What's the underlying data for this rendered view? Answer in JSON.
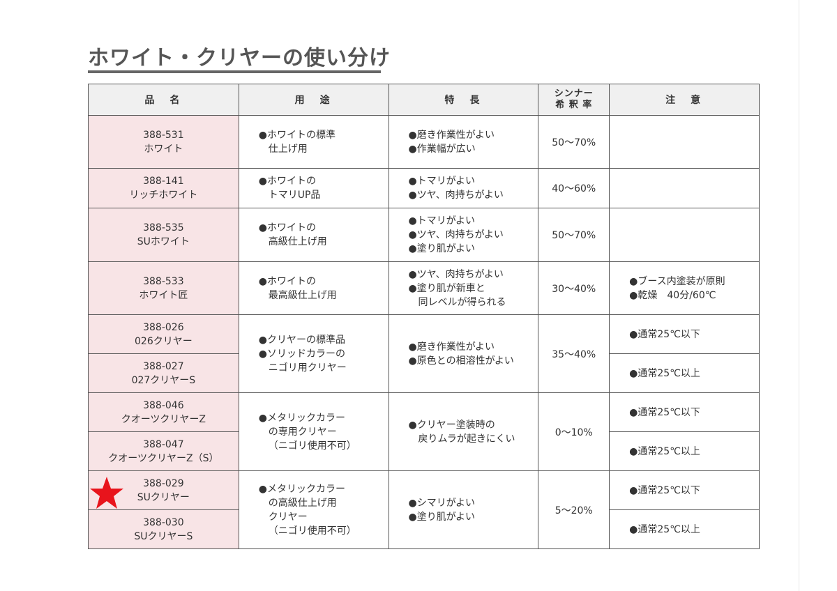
{
  "title": "ホワイト・クリヤーの使い分け",
  "headers": {
    "name": "品　名",
    "use": "用　途",
    "feature": "特　長",
    "thinner_1": "シンナー",
    "thinner_2": "希 釈 率",
    "note": "注　意"
  },
  "rows": [
    {
      "code": "388-531",
      "name": "ホワイト",
      "use": [
        "●ホワイトの標準",
        "仕上げ用"
      ],
      "feature": [
        "●磨き作業性がよい",
        "●作業幅が広い"
      ],
      "thinner": "50～70%",
      "note": []
    },
    {
      "code": "388-141",
      "name": "リッチホワイト",
      "use": [
        "●ホワイトの",
        "トマリUP品"
      ],
      "feature": [
        "●トマリがよい",
        "●ツヤ、肉持ちがよい"
      ],
      "thinner": "40～60%",
      "note": []
    },
    {
      "code": "388-535",
      "name": "SUホワイト",
      "use": [
        "●ホワイトの",
        "高級仕上げ用"
      ],
      "feature": [
        "●トマリがよい",
        "●ツヤ、肉持ちがよい",
        "●塗り肌がよい"
      ],
      "thinner": "50～70%",
      "note": []
    },
    {
      "code": "388-533",
      "name": "ホワイト匠",
      "use": [
        "●ホワイトの",
        "最高級仕上げ用"
      ],
      "feature": [
        "●ツヤ、肉持ちがよい",
        "●塗り肌が新車と",
        "同レベルが得られる"
      ],
      "thinner": "30～40%",
      "note": [
        "●ブース内塗装が原則",
        "●乾燥　40分/60℃"
      ]
    }
  ],
  "groups": [
    {
      "items": [
        {
          "code": "388-026",
          "name": "026クリヤー",
          "note": "●通常25℃以下"
        },
        {
          "code": "388-027",
          "name": "027クリヤーS",
          "note": "●通常25℃以上"
        }
      ],
      "use": [
        "●クリヤーの標準品",
        "●ソリッドカラーの",
        "ニゴリ用クリヤー"
      ],
      "feature": [
        "●磨き作業性がよい",
        "●原色との相溶性がよい"
      ],
      "thinner": "35～40%"
    },
    {
      "items": [
        {
          "code": "388-046",
          "name": "クオーツクリヤーZ",
          "note": "●通常25℃以下"
        },
        {
          "code": "388-047",
          "name": "クオーツクリヤーZ（S）",
          "note": "●通常25℃以上"
        }
      ],
      "use": [
        "●メタリックカラー",
        "の専用クリヤー",
        "（ニゴリ使用不可）"
      ],
      "feature": [
        "●クリヤー塗装時の",
        "戻りムラが起きにくい"
      ],
      "thinner": "0～10%"
    },
    {
      "items": [
        {
          "code": "388-029",
          "name": "SUクリヤー",
          "note": "●通常25℃以下"
        },
        {
          "code": "388-030",
          "name": "SUクリヤーS",
          "note": "●通常25℃以上"
        }
      ],
      "use": [
        "●メタリックカラー",
        "の高級仕上げ用",
        "クリヤー",
        "（ニゴリ使用不可）"
      ],
      "feature": [
        "●シマリがよい",
        "●塗り肌がよい"
      ],
      "thinner": "5～20%"
    }
  ],
  "marker": {
    "icon": "star-icon",
    "color": "#e8141c"
  }
}
